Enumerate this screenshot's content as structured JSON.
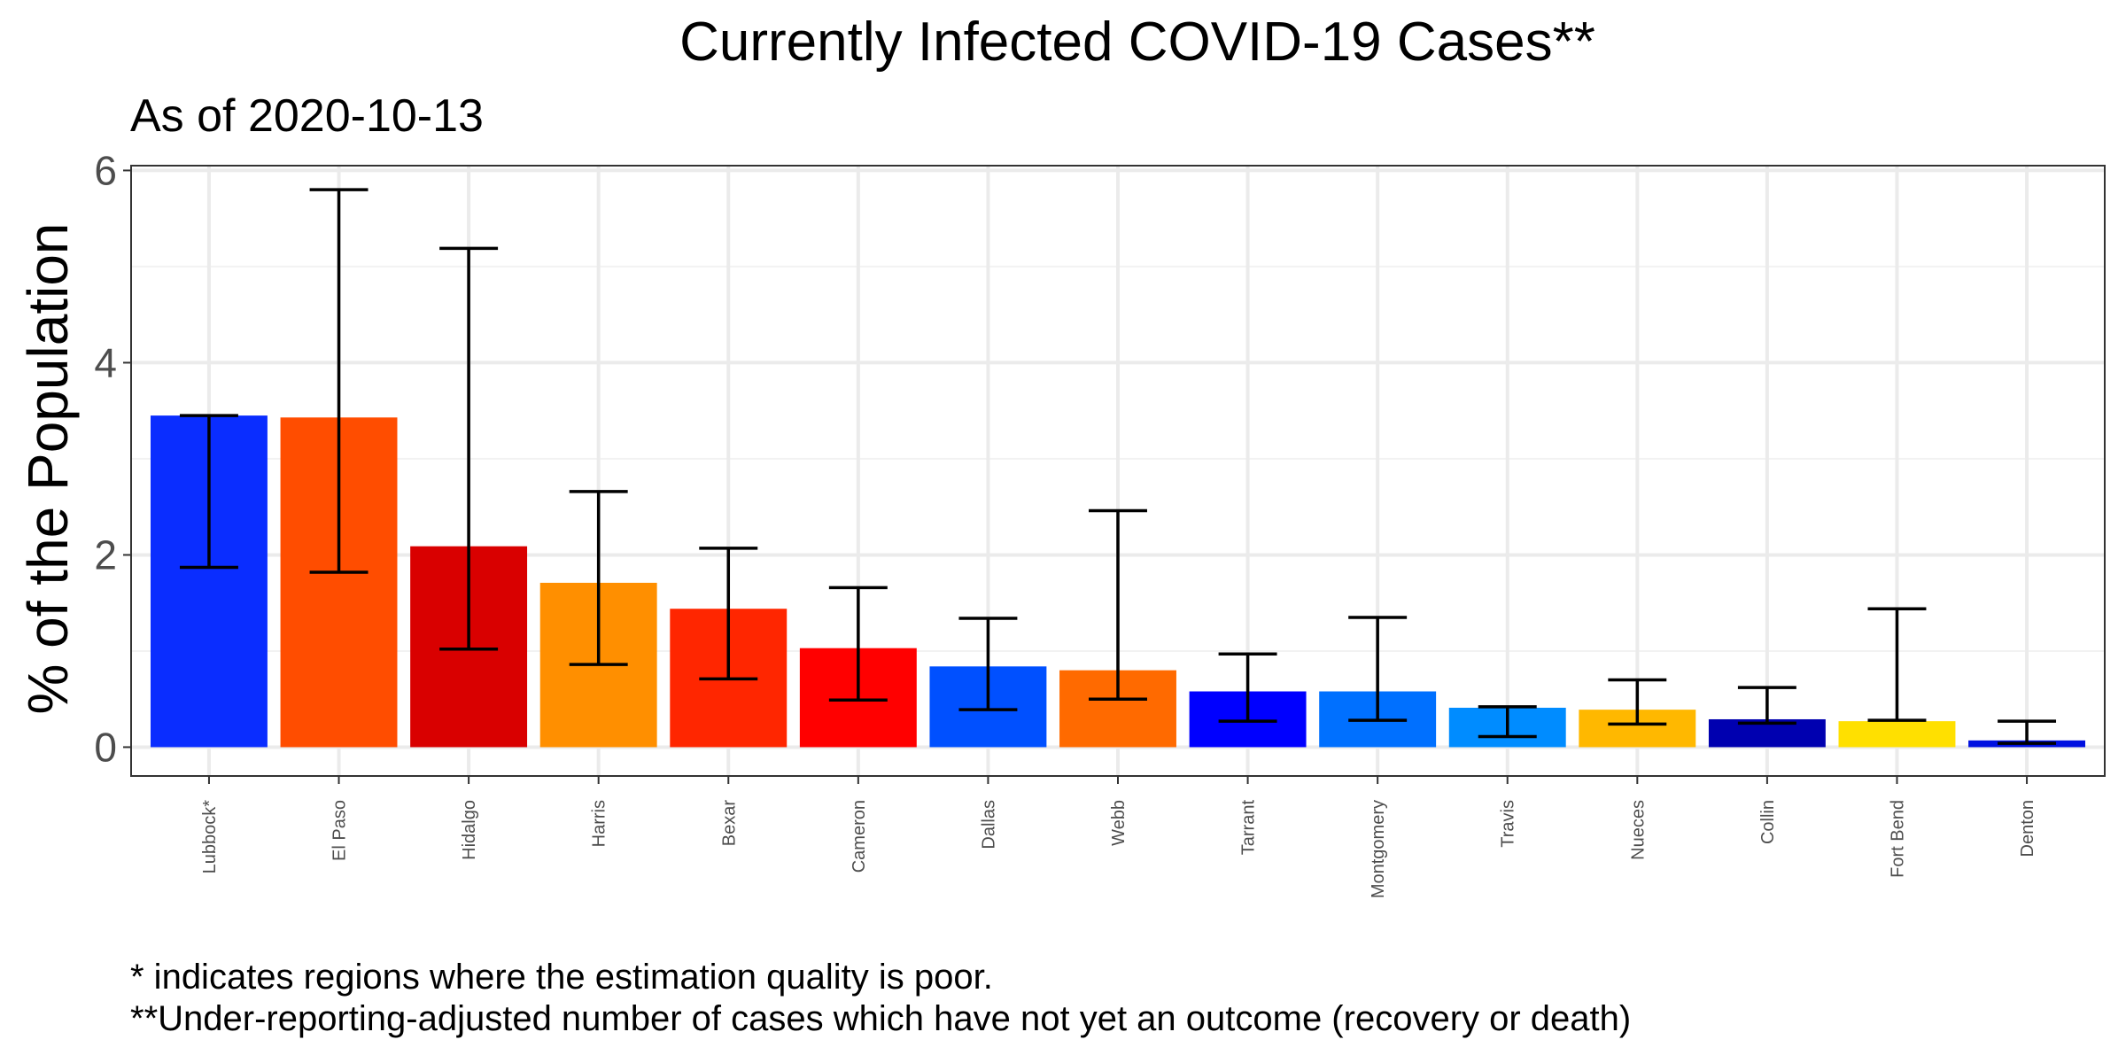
{
  "chart_data": {
    "type": "bar",
    "title": "Currently Infected COVID-19 Cases**",
    "subtitle": "As of 2020-10-13",
    "xlabel": "",
    "ylabel": "% of the Population",
    "ylim": [
      -0.3,
      6.05
    ],
    "yticks": [
      0,
      2,
      4,
      6
    ],
    "grid": true,
    "categories": [
      "Lubbock*",
      "El Paso",
      "Hidalgo",
      "Harris",
      "Bexar",
      "Cameron",
      "Dallas",
      "Webb",
      "Tarrant",
      "Montgomery",
      "Travis",
      "Nueces",
      "Collin",
      "Fort Bend",
      "Denton"
    ],
    "values": [
      3.45,
      3.43,
      2.09,
      1.71,
      1.44,
      1.03,
      0.84,
      0.8,
      0.58,
      0.58,
      0.41,
      0.39,
      0.29,
      0.27,
      0.07
    ],
    "error_low": [
      1.87,
      1.82,
      1.02,
      0.86,
      0.71,
      0.49,
      0.39,
      0.5,
      0.27,
      0.28,
      0.11,
      0.24,
      0.25,
      0.28,
      0.04
    ],
    "error_high": [
      3.45,
      5.8,
      5.19,
      2.66,
      2.07,
      1.66,
      1.34,
      2.46,
      0.97,
      1.35,
      0.42,
      0.7,
      0.62,
      1.44,
      0.27
    ],
    "colors": [
      "#0A2DFF",
      "#FF4D00",
      "#D90000",
      "#FF8F00",
      "#FF2600",
      "#FF0000",
      "#0050FF",
      "#FF6A00",
      "#0000FF",
      "#0070FF",
      "#008CFF",
      "#FFB800",
      "#0000B0",
      "#FFE000",
      "#0010E0"
    ],
    "captions": [
      "* indicates regions where the estimation quality is poor.",
      "**Under-reporting-adjusted number of cases which have not yet an outcome (recovery or death)"
    ]
  }
}
